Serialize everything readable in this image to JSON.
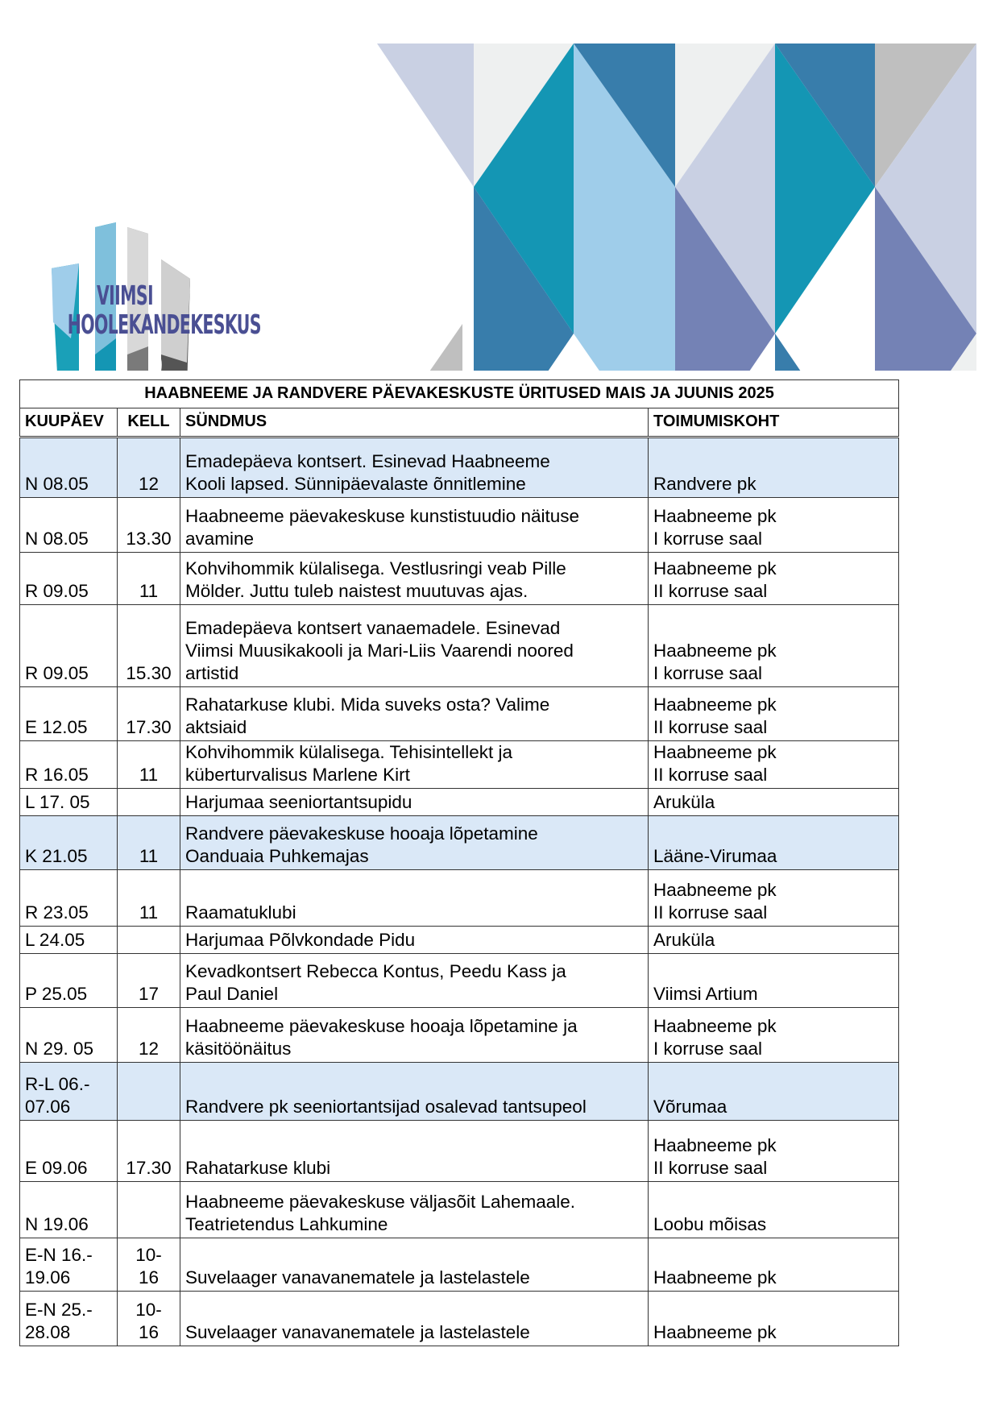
{
  "logo": {
    "line1": "VIIMSI",
    "line2": "HOOLEKANDEKESKUS"
  },
  "colors": {
    "highlight_row": "#dae8f7",
    "logo_text": "#4a4f93",
    "teal": "#1496b4",
    "steel": "#387dab",
    "light_blue": "#9fcdea",
    "lavender": "#c9d0e3",
    "periwinkle": "#7482b5",
    "grey": "#bfbfbf"
  },
  "table": {
    "title": "HAABNEEME JA RANDVERE PÄEVAKESKUSTE ÜRITUSED MAIS JA JUUNIS 2025",
    "headers": {
      "date": "KUUPÄEV",
      "time": "KELL",
      "event": "SÜNDMUS",
      "place": "TOIMUMISKOHT"
    },
    "rows": [
      {
        "date": "N 08.05",
        "time": "12",
        "event": "Emadepäeva kontsert. Esinevad Haabneeme\nKooli lapsed. Sünnipäevalaste õnnitlemine",
        "place": "Randvere pk",
        "highlight": true
      },
      {
        "date": "N 08.05",
        "time": "13.30",
        "event": "Haabneeme päevakeskuse kunstistuudio näituse\navamine",
        "place": "Haabneeme pk\nI korruse saal",
        "highlight": false
      },
      {
        "date": "R 09.05",
        "time": "11",
        "event": "Kohvihommik külalisega. Vestlusringi veab Pille\nMölder. Juttu tuleb naistest muutuvas ajas.",
        "place": "Haabneeme pk\nII korruse saal",
        "highlight": false
      },
      {
        "date": "R 09.05",
        "time": "15.30",
        "event": "Emadepäeva kontsert vanaemadele. Esinevad\nViimsi Muusikakooli ja Mari-Liis Vaarendi noored\nartistid",
        "place": "Haabneeme pk\nI korruse saal",
        "highlight": false
      },
      {
        "date": "E 12.05",
        "time": "17.30",
        "event": "Rahatarkuse klubi. Mida suveks osta? Valime\naktsiaid",
        "place": "Haabneeme pk\nII korruse saal",
        "highlight": false
      },
      {
        "date": "R 16.05",
        "time": "11",
        "event": "Kohvihommik külalisega. Tehisintellekt ja\nküberturvalisus  Marlene Kirt",
        "place": "Haabneeme pk\nII korruse saal",
        "highlight": false
      },
      {
        "date": "L 17. 05",
        "time": "",
        "event": "Harjumaa seeniortantsupidu",
        "place": "Aruküla",
        "highlight": false
      },
      {
        "date": "K 21.05",
        "time": "11",
        "event": "Randvere päevakeskuse hooaja lõpetamine\nOanduaia Puhkemajas",
        "place": "Lääne-Virumaa",
        "highlight": true
      },
      {
        "date": "R 23.05",
        "time": "11",
        "event": "Raamatuklubi",
        "place": "Haabneeme pk\nII korruse saal",
        "highlight": false
      },
      {
        "date": "L 24.05",
        "time": "",
        "event": "Harjumaa Põlvkondade Pidu",
        "place": "Aruküla",
        "highlight": false
      },
      {
        "date": " P 25.05",
        "time": "17",
        "event": "Kevadkontsert Rebecca Kontus, Peedu Kass ja\nPaul Daniel",
        "place": "Viimsi Artium",
        "highlight": false
      },
      {
        "date": "N 29. 05",
        "time": "12",
        "event": "Haabneeme päevakeskuse hooaja lõpetamine ja\nkäsitöönäitus",
        "place": "Haabneeme pk\nI korruse saal",
        "highlight": false
      },
      {
        "date": "R-L 06.-\n07.06",
        "time": "",
        "event": "Randvere pk seeniortantsijad osalevad tantsupeol",
        "place": "Võrumaa",
        "highlight": true
      },
      {
        "date": "E 09.06",
        "time": "17.30",
        "event": "Rahatarkuse klubi",
        "place": "Haabneeme pk\nII korruse saal",
        "highlight": false
      },
      {
        "date": "N 19.06",
        "time": "",
        "event": "Haabneeme päevakeskuse väljasõit Lahemaale.\nTeatrietendus Lahkumine",
        "place": "Loobu mõisas",
        "highlight": false
      },
      {
        "date": "E-N 16.-\n19.06",
        "time": "10-\n16",
        "event": "Suvelaager vanavanematele ja lastelastele",
        "place": "Haabneeme pk",
        "highlight": false
      },
      {
        "date": "E-N 25.-\n28.08",
        "time": "10-\n16",
        "event": "Suvelaager vanavanematele ja lastelastele",
        "place": "Haabneeme pk",
        "highlight": false
      }
    ]
  }
}
